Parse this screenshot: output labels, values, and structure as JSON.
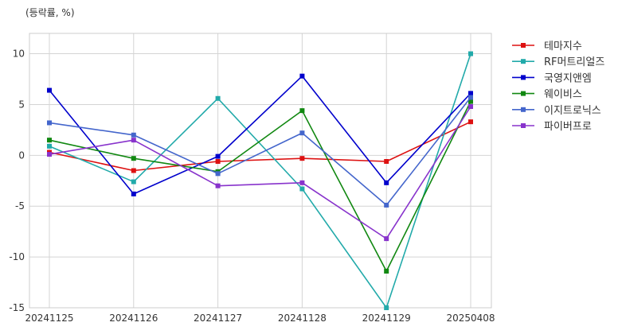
{
  "chart_data": {
    "type": "line",
    "title": "",
    "unit_label": "(등락률, %)",
    "xlabel": "",
    "ylabel": "",
    "categories": [
      "20241125",
      "20241126",
      "20241127",
      "20241128",
      "20241129",
      "20250408"
    ],
    "ylim": [
      -15,
      12
    ],
    "yticks": [
      10,
      5,
      0,
      -5,
      -10,
      -15
    ],
    "grid": true,
    "legend_position": "right",
    "series": [
      {
        "name": "테마지수",
        "color": "#dd1111",
        "values": [
          0.3,
          -1.5,
          -0.6,
          -0.3,
          -0.6,
          3.3
        ]
      },
      {
        "name": "RF머트리얼즈",
        "color": "#22aaaa",
        "values": [
          0.9,
          -2.6,
          5.6,
          -3.3,
          -15.0,
          10.0
        ]
      },
      {
        "name": "국영지앤엠",
        "color": "#0000cc",
        "values": [
          6.4,
          -3.8,
          -0.1,
          7.8,
          -2.7,
          6.1
        ]
      },
      {
        "name": "웨이비스",
        "color": "#118811",
        "values": [
          1.5,
          -0.3,
          -1.6,
          4.4,
          -11.4,
          5.3
        ]
      },
      {
        "name": "이지트로닉스",
        "color": "#4466cc",
        "values": [
          3.2,
          2.0,
          -1.8,
          2.2,
          -4.9,
          5.7
        ]
      },
      {
        "name": "파이버프로",
        "color": "#8833cc",
        "values": [
          0.1,
          1.5,
          -3.0,
          -2.7,
          -8.2,
          4.8
        ]
      }
    ]
  }
}
